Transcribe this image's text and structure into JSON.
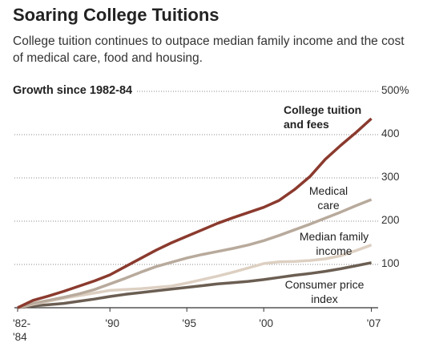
{
  "chart_data": {
    "type": "line",
    "title": "Soaring College Tuitions",
    "subtitle": "College tuition continues to outpace median family income and the cost of medical care, food and housing.",
    "y_axis_label": "Growth since 1982-84",
    "x": [
      1984,
      1985,
      1986,
      1987,
      1988,
      1989,
      1990,
      1991,
      1992,
      1993,
      1994,
      1995,
      1996,
      1997,
      1998,
      1999,
      2000,
      2001,
      2002,
      2003,
      2004,
      2005,
      2006,
      2007
    ],
    "series": [
      {
        "name": "College tuition and fees",
        "color": "#8b3a2e",
        "values": [
          0,
          17,
          27,
          38,
          50,
          62,
          76,
          95,
          114,
          133,
          150,
          165,
          180,
          195,
          208,
          220,
          232,
          248,
          273,
          303,
          343,
          375,
          405,
          437
        ]
      },
      {
        "name": "Medical care",
        "color": "#b8aa9c",
        "values": [
          0,
          10,
          17,
          24,
          32,
          42,
          55,
          68,
          82,
          95,
          105,
          115,
          123,
          130,
          137,
          145,
          155,
          167,
          180,
          193,
          207,
          221,
          236,
          250
        ]
      },
      {
        "name": "Median family income",
        "color": "#ddd0c2",
        "values": [
          0,
          8,
          15,
          22,
          28,
          34,
          40,
          42,
          44,
          47,
          50,
          57,
          65,
          73,
          82,
          92,
          102,
          106,
          107,
          109,
          113,
          120,
          132,
          145
        ]
      },
      {
        "name": "Consumer price index",
        "color": "#6b5e52",
        "values": [
          0,
          4,
          7,
          10,
          15,
          20,
          26,
          31,
          35,
          39,
          43,
          47,
          51,
          55,
          58,
          61,
          65,
          70,
          75,
          79,
          84,
          90,
          97,
          104
        ]
      }
    ],
    "xlim": [
      1984,
      2007
    ],
    "xticks": [
      {
        "value": 1984,
        "label": "'82-'84"
      },
      {
        "value": 1990,
        "label": "'90"
      },
      {
        "value": 1995,
        "label": "'95"
      },
      {
        "value": 2000,
        "label": "'00"
      },
      {
        "value": 2007,
        "label": "'07"
      }
    ],
    "ylim": [
      0,
      500
    ],
    "yticks": [
      100,
      200,
      300,
      400,
      {
        "value": 500,
        "label": "500%"
      }
    ],
    "grid": true
  }
}
